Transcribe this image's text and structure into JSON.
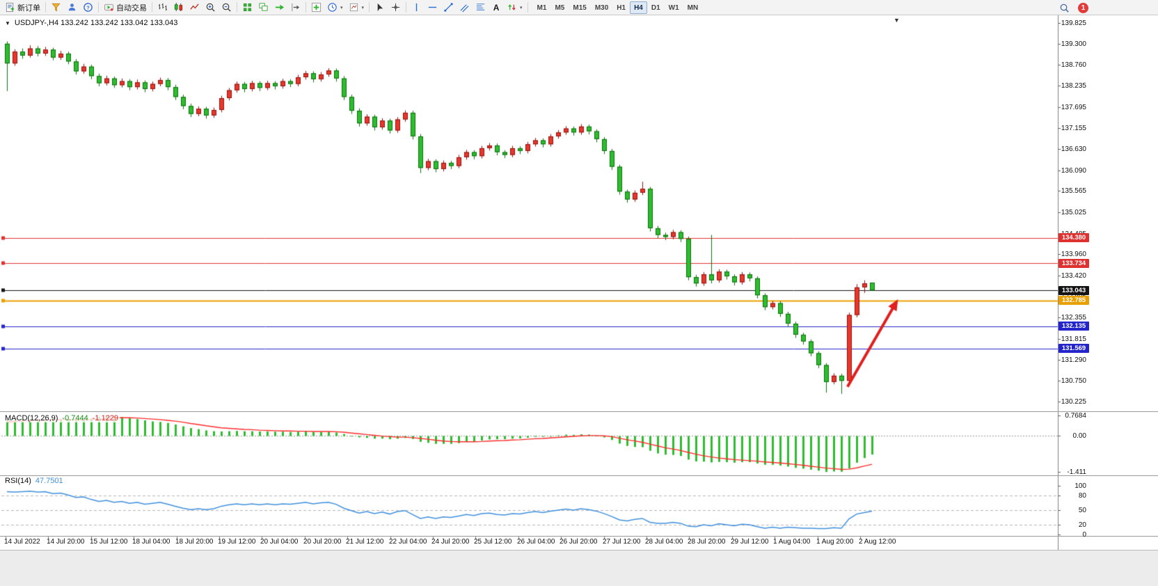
{
  "toolbar": {
    "new_order_label": "新订单",
    "auto_trading_label": "自动交易",
    "text_tool_label": "A",
    "timeframes": [
      "M1",
      "M5",
      "M15",
      "M30",
      "H1",
      "H4",
      "D1",
      "W1",
      "MN"
    ],
    "active_timeframe": "H4",
    "notification_count": "1"
  },
  "chart": {
    "symbol_title": "USDJPY-,H4 133.242 133.242 133.042 133.043",
    "price_axis": [
      "139.825",
      "139.300",
      "138.760",
      "138.235",
      "137.695",
      "137.155",
      "136.630",
      "136.090",
      "135.565",
      "135.025",
      "134.485",
      "133.960",
      "133.420",
      "132.895",
      "132.355",
      "131.815",
      "131.290",
      "130.750",
      "130.225"
    ],
    "time_axis": [
      "14 Jul 2022",
      "14 Jul 20:00",
      "15 Jul 12:00",
      "18 Jul 04:00",
      "18 Jul 20:00",
      "19 Jul 12:00",
      "20 Jul 04:00",
      "20 Jul 20:00",
      "21 Jul 12:00",
      "22 Jul 04:00",
      "24 Jul 20:00",
      "25 Jul 12:00",
      "26 Jul 04:00",
      "26 Jul 20:00",
      "27 Jul 12:00",
      "28 Jul 04:00",
      "28 Jul 20:00",
      "29 Jul 12:00",
      "1 Aug 04:00",
      "1 Aug 20:00",
      "2 Aug 12:00"
    ]
  },
  "macd": {
    "title": "MACD(12,26,9)",
    "value_main": "-0.7444",
    "value_signal": "-1.1229",
    "axis_labels": [
      "0.7684",
      "0.00",
      "-1.411"
    ]
  },
  "rsi": {
    "title": "RSI(14)",
    "value": "47.7501",
    "axis_labels": [
      "100",
      "80",
      "50",
      "20",
      "0"
    ]
  },
  "colors": {
    "candle_up": "#e8372c",
    "candle_up_border": "#8f130d",
    "candle_down": "#2ebd2e",
    "candle_down_border": "#0c6e0c",
    "macd_hist": "#2ebd2e",
    "macd_signal": "#ff2a2a",
    "rsi_line": "#3f8fdd",
    "axis_text": "#111111"
  },
  "chart_data": [
    {
      "type": "candlestick",
      "title": "USDJPY- H4",
      "ylim": [
        130.1,
        139.95
      ],
      "ohlc": [
        [
          139.3,
          139.36,
          138.1,
          138.8
        ],
        [
          138.8,
          139.16,
          138.74,
          139.1
        ],
        [
          139.1,
          139.18,
          138.92,
          139.0
        ],
        [
          139.0,
          139.26,
          138.95,
          139.18
        ],
        [
          139.18,
          139.24,
          138.98,
          139.05
        ],
        [
          139.05,
          139.22,
          138.99,
          139.15
        ],
        [
          139.15,
          139.2,
          138.88,
          138.95
        ],
        [
          138.95,
          139.12,
          138.89,
          139.05
        ],
        [
          139.05,
          139.1,
          138.78,
          138.85
        ],
        [
          138.85,
          138.91,
          138.52,
          138.6
        ],
        [
          138.6,
          138.79,
          138.54,
          138.72
        ],
        [
          138.72,
          138.77,
          138.4,
          138.48
        ],
        [
          138.48,
          138.54,
          138.22,
          138.3
        ],
        [
          138.3,
          138.49,
          138.24,
          138.42
        ],
        [
          138.42,
          138.47,
          138.18,
          138.25
        ],
        [
          138.25,
          138.42,
          138.19,
          138.35
        ],
        [
          138.35,
          138.4,
          138.12,
          138.2
        ],
        [
          138.2,
          138.39,
          138.14,
          138.32
        ],
        [
          138.32,
          138.37,
          138.07,
          138.15
        ],
        [
          138.15,
          138.34,
          138.09,
          138.28
        ],
        [
          138.28,
          138.44,
          138.22,
          138.38
        ],
        [
          138.38,
          138.43,
          138.12,
          138.2
        ],
        [
          138.2,
          138.26,
          137.87,
          137.95
        ],
        [
          137.95,
          138.01,
          137.64,
          137.72
        ],
        [
          137.72,
          137.78,
          137.44,
          137.52
        ],
        [
          137.52,
          137.71,
          137.46,
          137.65
        ],
        [
          137.65,
          137.7,
          137.4,
          137.48
        ],
        [
          137.48,
          137.68,
          137.42,
          137.62
        ],
        [
          137.62,
          137.98,
          137.56,
          137.92
        ],
        [
          137.92,
          138.18,
          137.86,
          138.12
        ],
        [
          138.12,
          138.34,
          138.06,
          138.28
        ],
        [
          138.28,
          138.33,
          138.07,
          138.15
        ],
        [
          138.15,
          138.36,
          138.09,
          138.3
        ],
        [
          138.3,
          138.35,
          138.1,
          138.18
        ],
        [
          138.18,
          138.36,
          138.12,
          138.3
        ],
        [
          138.3,
          138.35,
          138.14,
          138.22
        ],
        [
          138.22,
          138.41,
          138.16,
          138.35
        ],
        [
          138.35,
          138.4,
          138.2,
          138.28
        ],
        [
          138.28,
          138.51,
          138.22,
          138.45
        ],
        [
          138.45,
          138.61,
          138.39,
          138.55
        ],
        [
          138.55,
          138.6,
          138.32,
          138.4
        ],
        [
          138.4,
          138.58,
          138.34,
          138.52
        ],
        [
          138.52,
          138.68,
          138.46,
          138.62
        ],
        [
          138.62,
          138.67,
          138.34,
          138.42
        ],
        [
          138.42,
          138.48,
          137.87,
          137.95
        ],
        [
          137.95,
          138.01,
          137.52,
          137.6
        ],
        [
          137.6,
          137.66,
          137.2,
          137.28
        ],
        [
          137.28,
          137.51,
          137.22,
          137.45
        ],
        [
          137.45,
          137.5,
          137.1,
          137.18
        ],
        [
          137.18,
          137.41,
          137.12,
          137.35
        ],
        [
          137.35,
          137.4,
          137.02,
          137.1
        ],
        [
          137.1,
          137.44,
          137.04,
          137.38
        ],
        [
          137.38,
          137.61,
          137.32,
          137.55
        ],
        [
          137.55,
          137.6,
          136.87,
          136.95
        ],
        [
          136.95,
          137.01,
          136.02,
          136.15
        ],
        [
          136.15,
          136.38,
          136.09,
          136.32
        ],
        [
          136.32,
          136.37,
          136.04,
          136.12
        ],
        [
          136.12,
          136.34,
          136.06,
          136.28
        ],
        [
          136.28,
          136.33,
          136.12,
          136.2
        ],
        [
          136.2,
          136.48,
          136.14,
          136.42
        ],
        [
          136.42,
          136.61,
          136.36,
          136.55
        ],
        [
          136.55,
          136.6,
          136.37,
          136.45
        ],
        [
          136.45,
          136.71,
          136.39,
          136.65
        ],
        [
          136.65,
          136.78,
          136.59,
          136.72
        ],
        [
          136.72,
          136.77,
          136.47,
          136.55
        ],
        [
          136.55,
          136.6,
          136.4,
          136.48
        ],
        [
          136.48,
          136.71,
          136.42,
          136.65
        ],
        [
          136.65,
          136.7,
          136.5,
          136.58
        ],
        [
          136.58,
          136.81,
          136.52,
          136.75
        ],
        [
          136.75,
          136.91,
          136.69,
          136.85
        ],
        [
          136.85,
          136.9,
          136.67,
          136.75
        ],
        [
          136.75,
          137.01,
          136.69,
          136.95
        ],
        [
          136.95,
          137.11,
          136.89,
          137.05
        ],
        [
          137.05,
          137.21,
          136.99,
          137.15
        ],
        [
          137.15,
          137.2,
          136.97,
          137.05
        ],
        [
          137.05,
          137.26,
          136.99,
          137.2
        ],
        [
          137.2,
          137.25,
          137.0,
          137.08
        ],
        [
          137.08,
          137.13,
          136.8,
          136.88
        ],
        [
          136.88,
          136.93,
          136.5,
          136.58
        ],
        [
          136.58,
          136.63,
          136.1,
          136.18
        ],
        [
          136.18,
          136.23,
          135.47,
          135.55
        ],
        [
          135.55,
          135.6,
          135.27,
          135.35
        ],
        [
          135.35,
          135.58,
          135.29,
          135.52
        ],
        [
          135.52,
          135.8,
          135.46,
          135.62
        ],
        [
          135.62,
          135.67,
          134.54,
          134.62
        ],
        [
          134.62,
          134.68,
          134.37,
          134.45
        ],
        [
          134.45,
          134.51,
          134.32,
          134.4
        ],
        [
          134.4,
          134.58,
          134.34,
          134.52
        ],
        [
          134.52,
          134.57,
          134.27,
          134.35
        ],
        [
          134.35,
          134.41,
          133.3,
          133.38
        ],
        [
          133.38,
          133.44,
          133.14,
          133.22
        ],
        [
          133.22,
          133.51,
          133.16,
          133.45
        ],
        [
          133.45,
          134.45,
          133.22,
          133.3
        ],
        [
          133.3,
          133.58,
          133.24,
          133.52
        ],
        [
          133.52,
          133.57,
          133.32,
          133.4
        ],
        [
          133.4,
          133.45,
          133.17,
          133.25
        ],
        [
          133.25,
          133.51,
          133.19,
          133.45
        ],
        [
          133.45,
          133.5,
          133.27,
          133.35
        ],
        [
          133.35,
          133.4,
          132.84,
          132.92
        ],
        [
          132.92,
          132.97,
          132.54,
          132.62
        ],
        [
          132.62,
          132.78,
          132.56,
          132.72
        ],
        [
          132.72,
          132.77,
          132.37,
          132.45
        ],
        [
          132.45,
          132.5,
          132.12,
          132.2
        ],
        [
          132.2,
          132.25,
          131.84,
          131.92
        ],
        [
          131.92,
          131.97,
          131.67,
          131.75
        ],
        [
          131.75,
          131.8,
          131.37,
          131.45
        ],
        [
          131.45,
          131.5,
          131.07,
          131.15
        ],
        [
          131.15,
          131.2,
          130.45,
          130.72
        ],
        [
          130.72,
          130.94,
          130.66,
          130.88
        ],
        [
          130.88,
          130.93,
          130.42,
          130.75
        ],
        [
          130.75,
          132.48,
          130.68,
          132.42
        ],
        [
          132.42,
          133.2,
          132.36,
          133.12
        ],
        [
          133.12,
          133.3,
          132.98,
          133.22
        ],
        [
          133.242,
          133.242,
          133.042,
          133.043
        ]
      ],
      "hlines": [
        {
          "price": 134.38,
          "label": "134.380",
          "color": "#e03131",
          "width": 1
        },
        {
          "price": 133.734,
          "label": "133.734",
          "color": "#e03131",
          "width": 1
        },
        {
          "price": 133.043,
          "label": "133.043",
          "color": "#141414",
          "width": 1
        },
        {
          "price": 132.785,
          "label": "132.785",
          "color": "#e8a000",
          "width": 2
        },
        {
          "price": 132.135,
          "label": "132.135",
          "color": "#2424cc",
          "width": 1
        },
        {
          "price": 131.569,
          "label": "131.569",
          "color": "#2424cc",
          "width": 1
        }
      ],
      "annotations": [
        {
          "type": "arrow",
          "color": "#e01f1f",
          "from": {
            "bar": 109.8,
            "price": 130.6
          },
          "to": {
            "bar": 116.4,
            "price": 132.82
          }
        }
      ]
    },
    {
      "type": "bar",
      "title": "MACD(12,26,9)",
      "ylim": [
        -1.55,
        0.85
      ],
      "histogram": [
        0.58,
        0.6,
        0.61,
        0.63,
        0.62,
        0.64,
        0.62,
        0.63,
        0.61,
        0.58,
        0.6,
        0.66,
        0.72,
        0.76,
        0.74,
        0.71,
        0.67,
        0.63,
        0.58,
        0.54,
        0.52,
        0.48,
        0.42,
        0.35,
        0.28,
        0.24,
        0.19,
        0.16,
        0.15,
        0.16,
        0.17,
        0.16,
        0.16,
        0.15,
        0.15,
        0.14,
        0.14,
        0.13,
        0.14,
        0.15,
        0.13,
        0.13,
        0.14,
        0.11,
        0.05,
        -0.02,
        -0.08,
        -0.1,
        -0.13,
        -0.13,
        -0.15,
        -0.13,
        -0.1,
        -0.14,
        -0.25,
        -0.29,
        -0.33,
        -0.33,
        -0.33,
        -0.3,
        -0.26,
        -0.24,
        -0.2,
        -0.16,
        -0.15,
        -0.15,
        -0.13,
        -0.12,
        -0.09,
        -0.06,
        -0.06,
        -0.03,
        0.0,
        0.03,
        0.02,
        0.04,
        0.03,
        -0.01,
        -0.08,
        -0.18,
        -0.32,
        -0.41,
        -0.45,
        -0.46,
        -0.6,
        -0.7,
        -0.75,
        -0.76,
        -0.8,
        -0.94,
        -1.01,
        -1.02,
        -1.05,
        -1.03,
        -1.04,
        -1.06,
        -1.04,
        -1.04,
        -1.09,
        -1.14,
        -1.14,
        -1.17,
        -1.21,
        -1.26,
        -1.29,
        -1.33,
        -1.37,
        -1.42,
        -1.4,
        -1.41,
        -1.28,
        -1.06,
        -0.88,
        -0.7444
      ],
      "signal": [
        0.52,
        0.54,
        0.55,
        0.57,
        0.58,
        0.59,
        0.6,
        0.61,
        0.61,
        0.6,
        0.6,
        0.61,
        0.63,
        0.66,
        0.68,
        0.68,
        0.68,
        0.67,
        0.65,
        0.63,
        0.61,
        0.58,
        0.55,
        0.51,
        0.46,
        0.42,
        0.37,
        0.33,
        0.29,
        0.27,
        0.25,
        0.23,
        0.22,
        0.2,
        0.19,
        0.18,
        0.17,
        0.17,
        0.16,
        0.16,
        0.15,
        0.15,
        0.15,
        0.14,
        0.12,
        0.09,
        0.06,
        0.03,
        0.0,
        -0.03,
        -0.05,
        -0.07,
        -0.07,
        -0.09,
        -0.12,
        -0.15,
        -0.19,
        -0.22,
        -0.24,
        -0.25,
        -0.25,
        -0.25,
        -0.24,
        -0.22,
        -0.21,
        -0.2,
        -0.18,
        -0.17,
        -0.15,
        -0.13,
        -0.12,
        -0.1,
        -0.08,
        -0.06,
        -0.04,
        -0.02,
        -0.01,
        -0.01,
        -0.02,
        -0.05,
        -0.11,
        -0.17,
        -0.22,
        -0.27,
        -0.34,
        -0.41,
        -0.48,
        -0.53,
        -0.59,
        -0.66,
        -0.73,
        -0.79,
        -0.84,
        -0.88,
        -0.91,
        -0.94,
        -0.96,
        -0.98,
        -1.0,
        -1.03,
        -1.05,
        -1.07,
        -1.1,
        -1.13,
        -1.16,
        -1.2,
        -1.23,
        -1.27,
        -1.29,
        -1.32,
        -1.31,
        -1.26,
        -1.19,
        -1.1229
      ]
    },
    {
      "type": "line",
      "title": "RSI(14)",
      "ylim": [
        0,
        100
      ],
      "levels": [
        80,
        50,
        20
      ],
      "values": [
        88,
        87,
        88,
        89,
        87,
        88,
        84,
        85,
        81,
        76,
        77,
        72,
        68,
        70,
        66,
        68,
        64,
        66,
        62,
        64,
        66,
        62,
        58,
        54,
        51,
        53,
        51,
        53,
        58,
        61,
        63,
        61,
        63,
        61,
        63,
        61,
        63,
        62,
        64,
        66,
        63,
        65,
        66,
        62,
        54,
        49,
        44,
        47,
        43,
        46,
        42,
        47,
        49,
        41,
        33,
        36,
        33,
        36,
        35,
        38,
        41,
        39,
        43,
        44,
        41,
        40,
        43,
        42,
        45,
        47,
        45,
        48,
        50,
        52,
        50,
        53,
        51,
        48,
        43,
        37,
        30,
        28,
        31,
        33,
        25,
        23,
        23,
        25,
        23,
        17,
        16,
        20,
        18,
        22,
        20,
        18,
        21,
        20,
        16,
        13,
        15,
        13,
        15,
        14,
        13,
        13,
        12,
        12,
        14,
        13,
        32,
        42,
        45,
        47.7501
      ]
    }
  ]
}
